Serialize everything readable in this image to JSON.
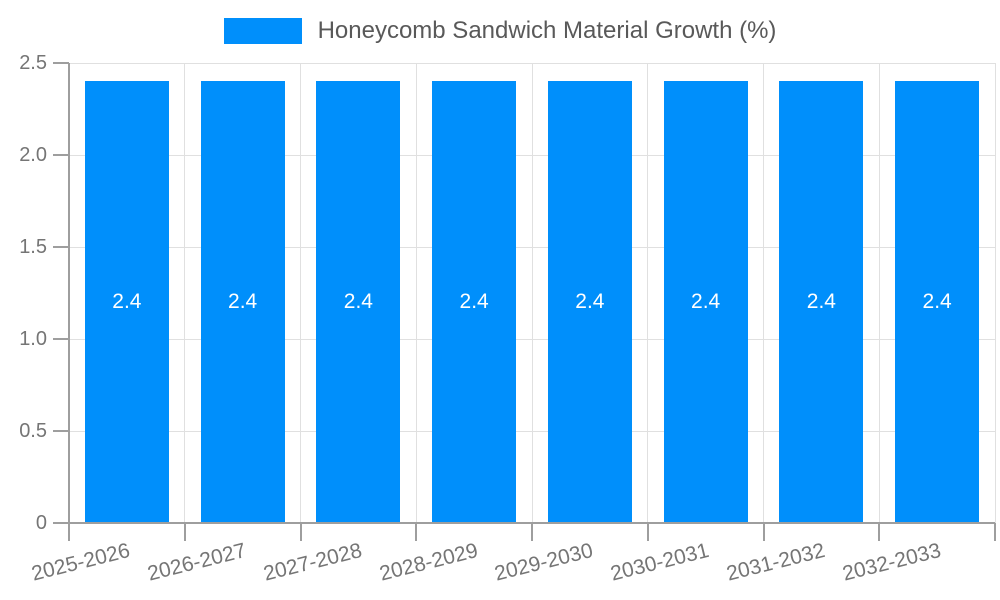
{
  "legend": {
    "label": "Honeycomb Sandwich Material Growth (%)",
    "swatch_color": "#008ffb"
  },
  "chart_data": {
    "type": "bar",
    "title": "Honeycomb Sandwich Material Growth (%)",
    "categories": [
      "2025-2026",
      "2026-2027",
      "2027-2028",
      "2028-2029",
      "2029-2030",
      "2030-2031",
      "2031-2032",
      "2032-2033"
    ],
    "values": [
      2.4,
      2.4,
      2.4,
      2.4,
      2.4,
      2.4,
      2.4,
      2.4
    ],
    "bar_labels": [
      "2.4",
      "2.4",
      "2.4",
      "2.4",
      "2.4",
      "2.4",
      "2.4",
      "2.4"
    ],
    "xlabel": "",
    "ylabel": "",
    "ylim": [
      0,
      2.5
    ],
    "ytick_values": [
      0,
      0.5,
      1,
      1.5,
      2,
      2.5
    ],
    "ytick_labels": [
      "0",
      "0.5",
      "1.0",
      "1.5",
      "2.0",
      "2.5"
    ],
    "grid": true,
    "legend_position": "top-center",
    "bar_color": "#008ffb",
    "bar_label_color": "#ffffff"
  },
  "colors": {
    "background": "#ffffff",
    "grid": "#e0e0e0",
    "axis": "#9e9e9e",
    "axis_label": "#757575",
    "legend_text": "#595959"
  }
}
